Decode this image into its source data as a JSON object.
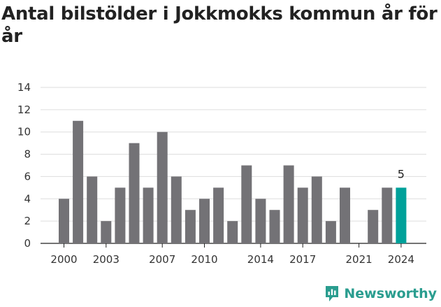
{
  "chart_data": {
    "type": "bar",
    "title": "Antal bilstölder i Jokkmokks kommun år för år",
    "xlabel": "",
    "ylabel": "",
    "ylim": [
      0,
      14
    ],
    "yticks": [
      0,
      2,
      4,
      6,
      8,
      10,
      12,
      14
    ],
    "xtick_labels": [
      "2000",
      "2003",
      "2007",
      "2010",
      "2014",
      "2017",
      "2021",
      "2024"
    ],
    "categories": [
      "2000",
      "2001",
      "2002",
      "2003",
      "2004",
      "2005",
      "2006",
      "2007",
      "2008",
      "2009",
      "2010",
      "2011",
      "2012",
      "2013",
      "2014",
      "2015",
      "2016",
      "2017",
      "2018",
      "2019",
      "2020",
      "2021",
      "2022",
      "2023",
      "2024"
    ],
    "values": [
      4,
      11,
      6,
      2,
      5,
      9,
      5,
      10,
      6,
      3,
      4,
      5,
      2,
      7,
      4,
      3,
      7,
      5,
      6,
      2,
      5,
      0,
      3,
      5,
      5
    ],
    "highlight": {
      "category": "2024",
      "label": "5"
    },
    "grid": true,
    "colors": {
      "bar": "#737276",
      "highlight": "#00a19a",
      "grid": "#dddddd"
    }
  },
  "brand": {
    "name": "Newsworthy",
    "color": "#2a9d8f"
  }
}
